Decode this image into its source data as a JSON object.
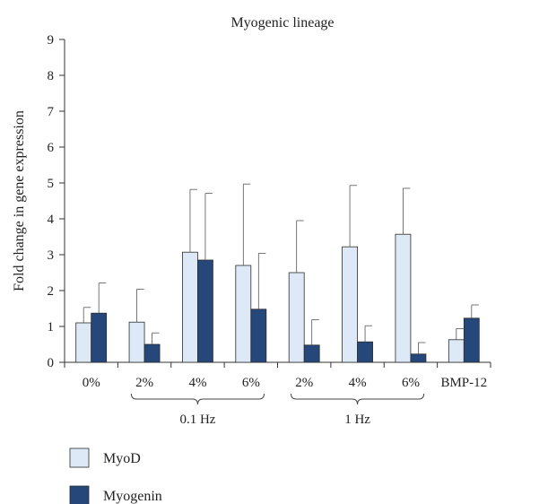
{
  "chart_data": {
    "type": "bar",
    "title": "Myogenic lineage",
    "ylabel": "Fold change in gene expression",
    "xlabel": "",
    "ylim": [
      0,
      9
    ],
    "yticks": [
      0,
      1,
      2,
      3,
      4,
      5,
      6,
      7,
      8,
      9
    ],
    "grid": false,
    "legend_position": "bottom-left",
    "categories": [
      "0%",
      "2%",
      "4%",
      "6%",
      "2%",
      "4%",
      "6%",
      "BMP-12"
    ],
    "groups": [
      {
        "label": "0.1 Hz",
        "categories": [
          "2%",
          "4%",
          "6%"
        ]
      },
      {
        "label": "1 Hz",
        "categories": [
          "2%",
          "4%",
          "6%"
        ]
      }
    ],
    "series": [
      {
        "name": "MyoD",
        "color": "#dde9f6",
        "values": [
          1.1,
          1.12,
          3.07,
          2.7,
          2.5,
          3.22,
          3.57,
          0.63
        ],
        "error": [
          0.43,
          0.92,
          1.75,
          2.27,
          1.45,
          1.71,
          1.28,
          0.31
        ]
      },
      {
        "name": "Myogenin",
        "color": "#25477a",
        "values": [
          1.37,
          0.5,
          2.85,
          1.48,
          0.48,
          0.57,
          0.23,
          1.23
        ],
        "error": [
          0.84,
          0.32,
          1.86,
          1.56,
          0.71,
          0.45,
          0.32,
          0.37
        ]
      }
    ]
  }
}
